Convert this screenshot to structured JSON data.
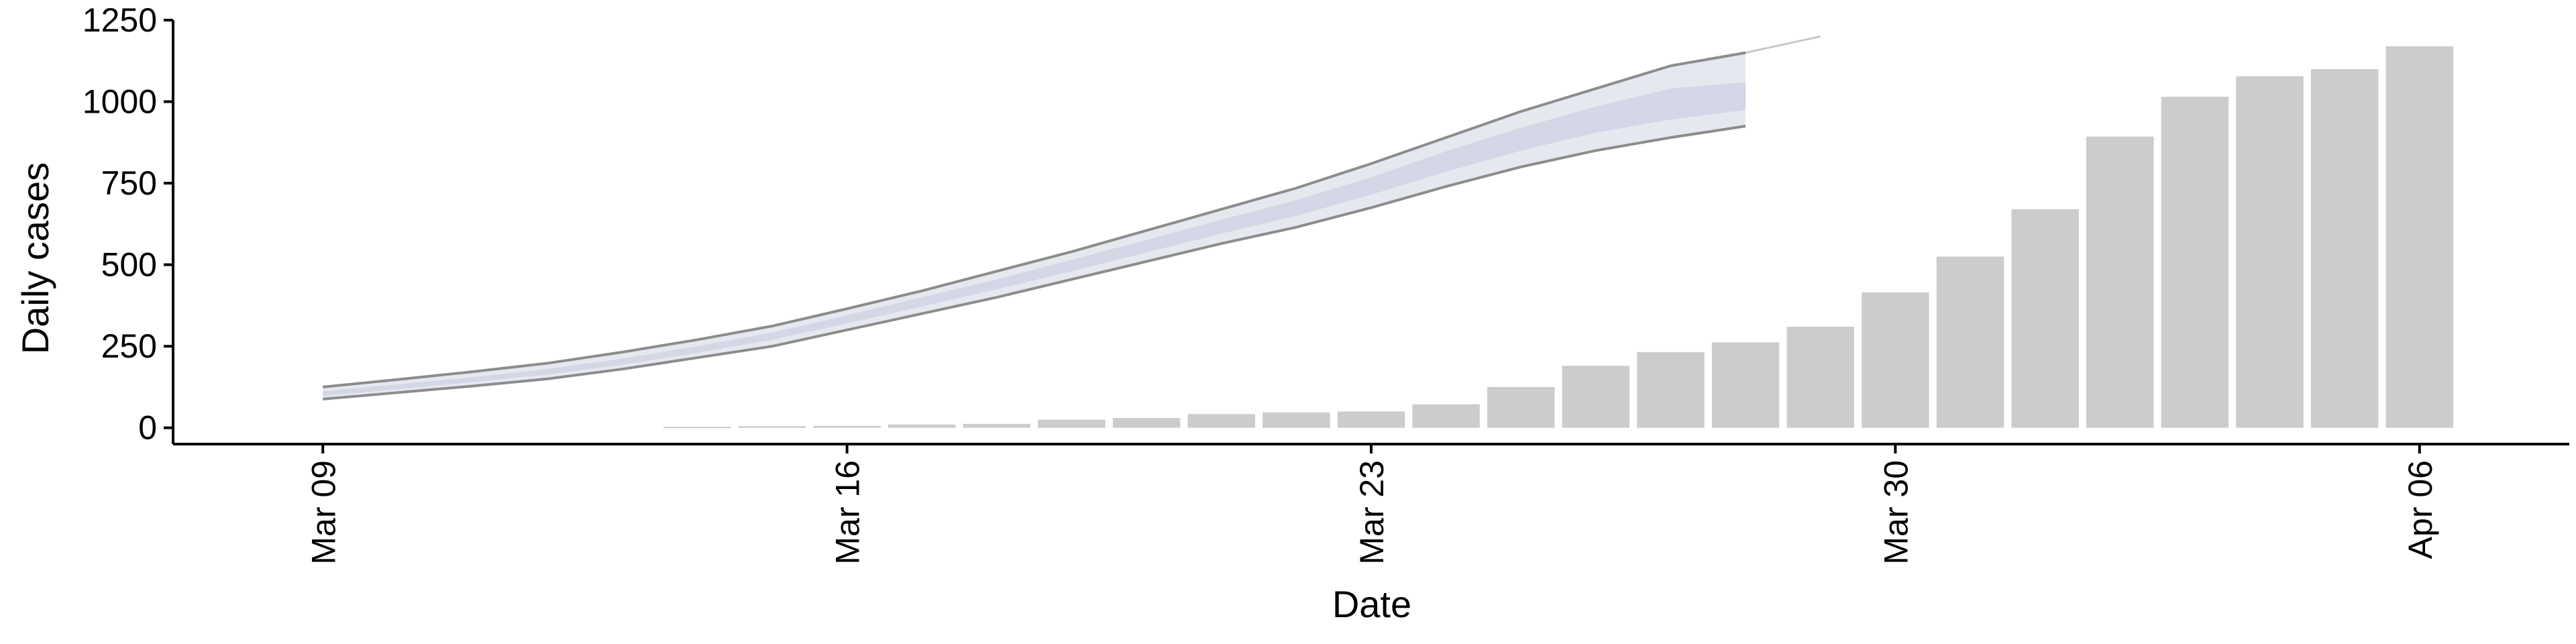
{
  "chart_data": {
    "type": "bar",
    "title": "",
    "xlabel": "Date",
    "ylabel": "Daily cases",
    "ylim": [
      -50,
      1250
    ],
    "yticks": [
      0,
      250,
      500,
      750,
      1000,
      1250
    ],
    "xlim": [
      "2020-03-07",
      "2020-04-08"
    ],
    "xticks": [
      {
        "date": "2020-03-09",
        "label": "Mar 09"
      },
      {
        "date": "2020-03-16",
        "label": "Mar 16"
      },
      {
        "date": "2020-03-23",
        "label": "Mar 23"
      },
      {
        "date": "2020-03-30",
        "label": "Mar 30"
      },
      {
        "date": "2020-04-06",
        "label": "Apr 06"
      }
    ],
    "grid": false,
    "legend": "none",
    "colors": {
      "bars": "#cccccc",
      "band_outer": "#e6e8ef",
      "band_inner": "#d3d7e6",
      "band_edge": "#8c8c8c",
      "axis": "#000000"
    },
    "bars": {
      "dates": [
        "2020-03-14",
        "2020-03-15",
        "2020-03-16",
        "2020-03-17",
        "2020-03-18",
        "2020-03-19",
        "2020-03-20",
        "2020-03-21",
        "2020-03-22",
        "2020-03-23",
        "2020-03-24",
        "2020-03-25",
        "2020-03-26",
        "2020-03-27",
        "2020-03-28",
        "2020-03-29",
        "2020-03-30",
        "2020-03-31",
        "2020-04-01",
        "2020-04-02",
        "2020-04-03",
        "2020-04-04",
        "2020-04-05",
        "2020-04-06"
      ],
      "values": [
        3,
        5,
        6,
        10,
        12,
        25,
        30,
        42,
        47,
        50,
        72,
        125,
        190,
        232,
        262,
        310,
        415,
        525,
        670,
        893,
        1015,
        1078,
        1100,
        1170
      ]
    },
    "forecast": {
      "dates": [
        "2020-03-09",
        "2020-03-10",
        "2020-03-11",
        "2020-03-12",
        "2020-03-13",
        "2020-03-14",
        "2020-03-15",
        "2020-03-16",
        "2020-03-17",
        "2020-03-18",
        "2020-03-19",
        "2020-03-20",
        "2020-03-21",
        "2020-03-22",
        "2020-03-23",
        "2020-03-24",
        "2020-03-25",
        "2020-03-26",
        "2020-03-27",
        "2020-03-28"
      ],
      "lower": [
        88,
        108,
        128,
        150,
        180,
        215,
        250,
        300,
        350,
        400,
        455,
        510,
        565,
        615,
        675,
        740,
        800,
        850,
        890,
        925
      ],
      "inner_lower": [
        98,
        118,
        140,
        163,
        193,
        230,
        270,
        320,
        372,
        425,
        480,
        538,
        595,
        650,
        715,
        785,
        850,
        905,
        945,
        975
      ],
      "inner_upper": [
        112,
        133,
        155,
        180,
        212,
        250,
        292,
        345,
        400,
        455,
        515,
        576,
        638,
        698,
        768,
        848,
        920,
        985,
        1040,
        1060
      ],
      "upper": [
        125,
        148,
        172,
        198,
        232,
        270,
        312,
        365,
        420,
        480,
        540,
        605,
        670,
        735,
        810,
        890,
        970,
        1040,
        1110,
        1150
      ],
      "dashed_upper": [
        1150,
        1200
      ],
      "dashed_dates": [
        "2020-03-28",
        "2020-03-29"
      ]
    }
  }
}
